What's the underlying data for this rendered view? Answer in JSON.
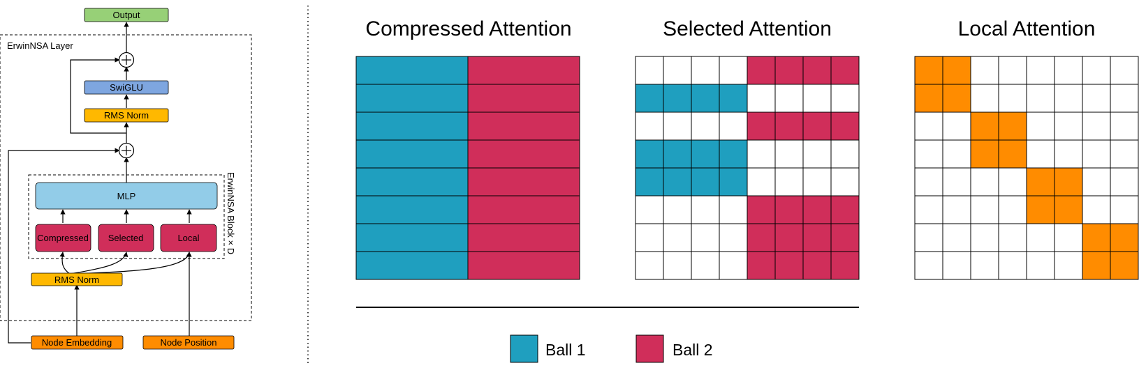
{
  "colors": {
    "output": "#97D077",
    "swiglu": "#7EA6E0",
    "norm": "#FFB800",
    "mlp": "#92CCE8",
    "attention": "#D02E5A",
    "input": "#FF8C00",
    "ball1": "#1F9FBF",
    "ball2": "#D02E5A",
    "local": "#FF8C00"
  },
  "architecture": {
    "layer_label": "ErwinNSA Layer",
    "block_label": "ErwinNSA Block × D",
    "output": "Output",
    "swiglu": "SwiGLU",
    "rms_norm_top": "RMS Norm",
    "mlp": "MLP",
    "compressed": "Compressed",
    "selected": "Selected",
    "local": "Local",
    "rms_norm_bottom": "RMS Norm",
    "node_embedding": "Node Embedding",
    "node_position": "Node Position"
  },
  "panels": {
    "compressed": {
      "title": "Compressed Attention",
      "rows": [
        [
          1,
          2
        ],
        [
          1,
          2
        ],
        [
          1,
          2
        ],
        [
          1,
          2
        ],
        [
          1,
          2
        ],
        [
          1,
          2
        ],
        [
          1,
          2
        ],
        [
          1,
          2
        ]
      ]
    },
    "selected": {
      "title": "Selected Attention",
      "rows": [
        [
          0,
          0,
          0,
          0,
          2,
          2,
          2,
          2
        ],
        [
          1,
          1,
          1,
          1,
          0,
          0,
          0,
          0
        ],
        [
          0,
          0,
          0,
          0,
          2,
          2,
          2,
          2
        ],
        [
          1,
          1,
          1,
          1,
          0,
          0,
          0,
          0
        ],
        [
          1,
          1,
          1,
          1,
          0,
          0,
          0,
          0
        ],
        [
          0,
          0,
          0,
          0,
          2,
          2,
          2,
          2
        ],
        [
          0,
          0,
          0,
          0,
          2,
          2,
          2,
          2
        ],
        [
          0,
          0,
          0,
          0,
          2,
          2,
          2,
          2
        ]
      ]
    },
    "local": {
      "title": "Local Attention",
      "rows": [
        [
          3,
          3,
          0,
          0,
          0,
          0,
          0,
          0
        ],
        [
          3,
          3,
          0,
          0,
          0,
          0,
          0,
          0
        ],
        [
          0,
          0,
          3,
          3,
          0,
          0,
          0,
          0
        ],
        [
          0,
          0,
          3,
          3,
          0,
          0,
          0,
          0
        ],
        [
          0,
          0,
          0,
          0,
          3,
          3,
          0,
          0
        ],
        [
          0,
          0,
          0,
          0,
          3,
          3,
          0,
          0
        ],
        [
          0,
          0,
          0,
          0,
          0,
          0,
          3,
          3
        ],
        [
          0,
          0,
          0,
          0,
          0,
          0,
          3,
          3
        ]
      ]
    }
  },
  "legend": [
    {
      "label": "Ball 1",
      "color_key": "ball1"
    },
    {
      "label": "Ball 2",
      "color_key": "ball2"
    }
  ]
}
